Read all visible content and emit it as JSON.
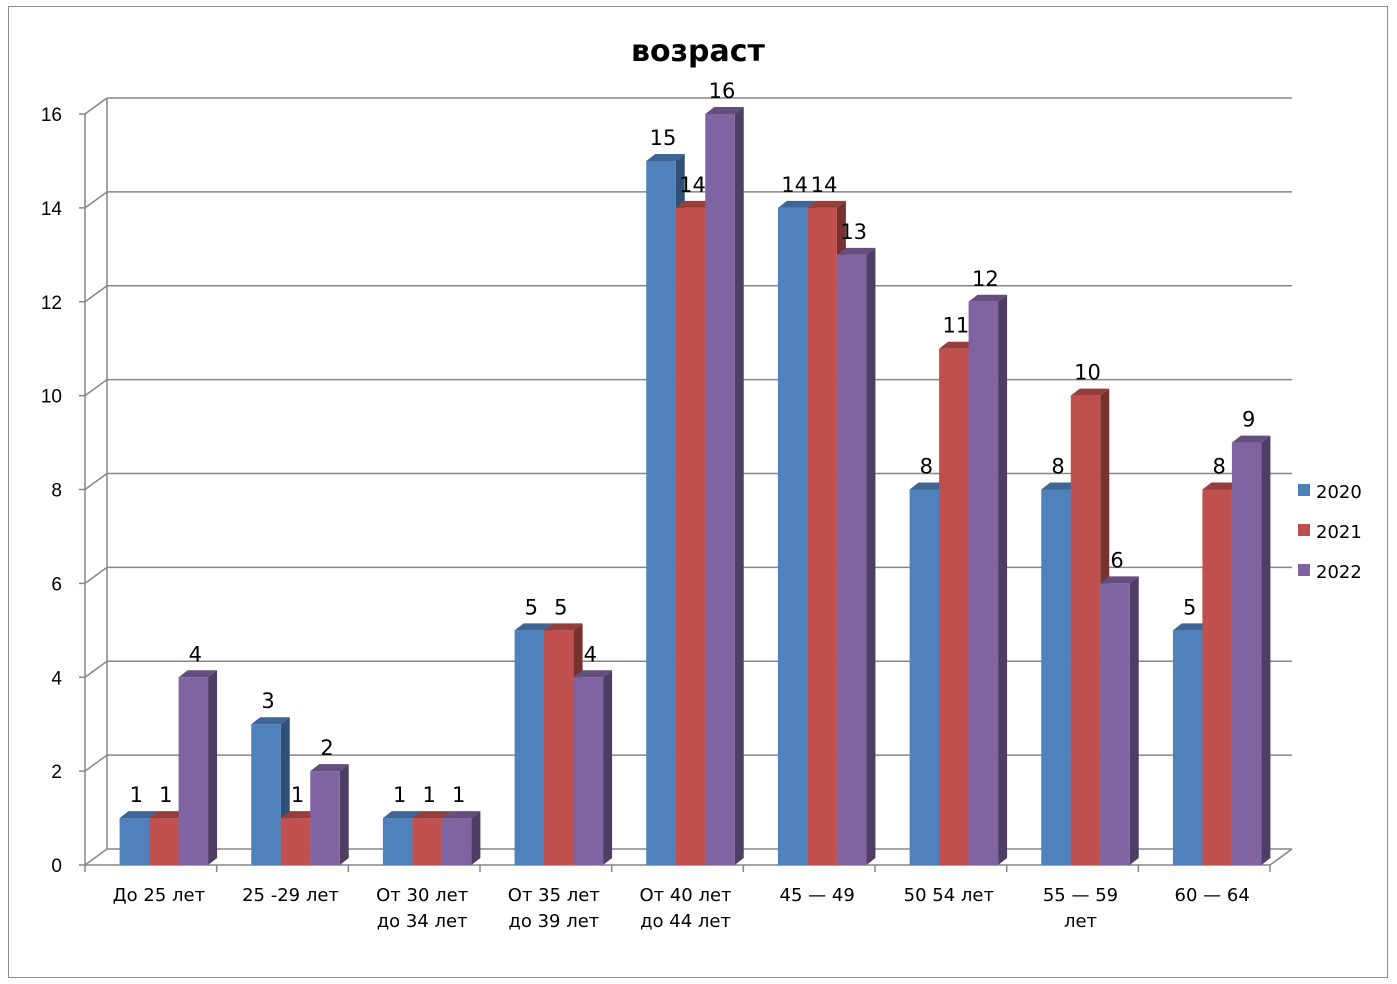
{
  "chart_data": {
    "type": "bar",
    "title": "возраст",
    "xlabel": "",
    "ylabel": "",
    "ylim": [
      0,
      16
    ],
    "yticks": [
      0,
      2,
      4,
      6,
      8,
      10,
      12,
      14,
      16
    ],
    "grid": true,
    "legend_position": "right",
    "categories": [
      [
        "До 25 лет"
      ],
      [
        "25 -29 лет"
      ],
      [
        "От 30 лет",
        "до 34 лет"
      ],
      [
        "От 35 лет",
        "до 39 лет"
      ],
      [
        "От 40 лет",
        "до 44 лет"
      ],
      [
        "45 — 49"
      ],
      [
        "50 54 лет"
      ],
      [
        "55 — 59",
        "лет"
      ],
      [
        "60 — 64"
      ]
    ],
    "series": [
      {
        "name": "2020",
        "color": "#4f81bd",
        "values": [
          1,
          3,
          1,
          5,
          15,
          14,
          8,
          8,
          5
        ]
      },
      {
        "name": "2021",
        "color": "#c0504d",
        "values": [
          1,
          1,
          1,
          5,
          14,
          14,
          11,
          10,
          8
        ]
      },
      {
        "name": "2022",
        "color": "#8064a2",
        "values": [
          4,
          2,
          1,
          4,
          16,
          13,
          12,
          6,
          9
        ]
      }
    ]
  }
}
